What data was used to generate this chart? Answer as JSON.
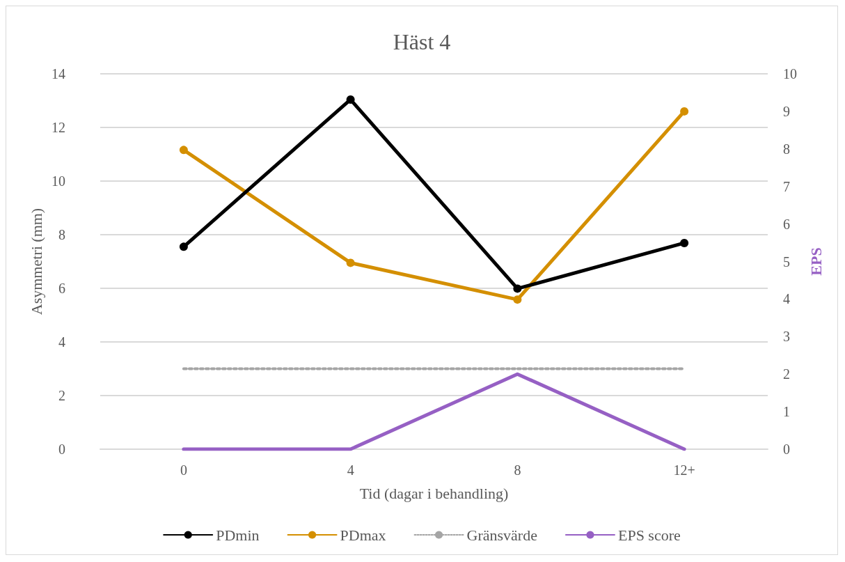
{
  "chart_data": {
    "type": "line",
    "title": "Häst 4",
    "xlabel": "Tid (dagar i behandling)",
    "ylabel": "Asymmetri (mm)",
    "y2label": "EPS",
    "categories": [
      "0",
      "4",
      "8",
      "12+"
    ],
    "series": [
      {
        "name": "PDmin",
        "color": "#000000",
        "values": [
          7.55,
          13.04,
          5.99,
          7.69
        ],
        "marker": "circle",
        "line_style": "solid"
      },
      {
        "name": "PDmax",
        "color": "#d48f00",
        "values": [
          11.16,
          6.95,
          5.58,
          12.6
        ],
        "marker": "circle",
        "line_style": "solid"
      },
      {
        "name": "Gränsvärde",
        "color": "#a5a5a5",
        "values": [
          3,
          3,
          3,
          3
        ],
        "marker": "none",
        "line_style": "dotted"
      },
      {
        "name": "EPS score",
        "color": "#9660c4",
        "values": [
          0,
          0,
          2,
          0
        ],
        "axis": "y2",
        "marker": "none",
        "line_style": "solid"
      }
    ],
    "ylim": [
      0,
      14
    ],
    "yticks": [
      0,
      2,
      4,
      6,
      8,
      10,
      12,
      14
    ],
    "y2lim": [
      0,
      10
    ],
    "y2ticks": [
      0,
      1,
      2,
      3,
      4,
      5,
      6,
      7,
      8,
      9,
      10
    ],
    "grid": "y",
    "legend": "bottom"
  }
}
